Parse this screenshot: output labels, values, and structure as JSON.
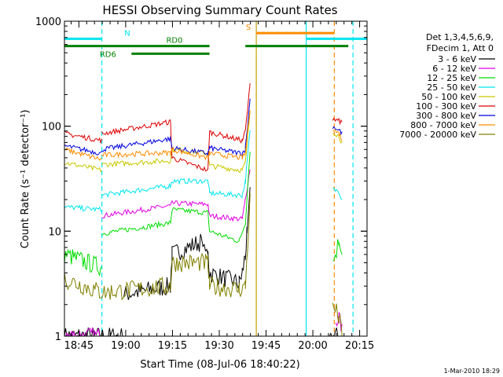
{
  "chart_data": {
    "type": "line",
    "title": "HESSI Observing Summary Count Rates",
    "xlabel": "Start Time (08-Jul-06 18:40:22)",
    "ylabel": "Count Rate (s⁻¹ detector⁻¹)",
    "yscale": "log",
    "ylim": [
      1,
      1000
    ],
    "xlim_minutes": [
      0,
      97
    ],
    "x_tick_labels": [
      "18:45",
      "19:00",
      "19:15",
      "19:30",
      "19:45",
      "20:00",
      "20:15"
    ],
    "x_tick_minutes": [
      4.63,
      19.63,
      34.63,
      49.63,
      64.63,
      79.63,
      94.63
    ],
    "y_tick_labels": [
      "1",
      "10",
      "100",
      "1000"
    ],
    "y_tick_values": [
      1,
      10,
      100,
      1000
    ],
    "legend_position": "right",
    "legend_header": [
      "Det 1,3,4,5,6,9,",
      "FDecim 1, Att 0"
    ],
    "series": [
      {
        "name": "3 - 6 keV",
        "color": "#000000",
        "segments": [
          [
            [
              0,
              1
            ],
            [
              19,
              1
            ]
          ],
          [
            [
              19,
              2.5
            ],
            [
              34,
              3
            ],
            [
              34.5,
              6
            ],
            [
              44,
              8
            ],
            [
              46,
              6
            ],
            [
              46.5,
              4
            ],
            [
              56,
              3.2
            ],
            [
              57,
              4
            ],
            [
              58,
              6
            ],
            [
              58.5,
              9
            ],
            [
              59.5,
              25
            ]
          ],
          [
            [
              85,
              1
            ],
            [
              88,
              1
            ]
          ]
        ]
      },
      {
        "name": "6 - 12 keV",
        "color": "#e000e0",
        "segments": [
          [
            [
              0,
              1
            ],
            [
              12,
              1
            ]
          ],
          [
            [
              12,
              14
            ],
            [
              34,
              17.5
            ],
            [
              34.5,
              18.5
            ],
            [
              46,
              18
            ],
            [
              46.5,
              14
            ],
            [
              57,
              13
            ],
            [
              58,
              20
            ],
            [
              59.5,
              40
            ]
          ],
          [
            [
              87,
              1.3
            ],
            [
              88,
              1.6
            ],
            [
              89,
              1.1
            ]
          ]
        ]
      },
      {
        "name": "12 - 25 keV",
        "color": "#00dd00",
        "segments": [
          [
            [
              0,
              6
            ],
            [
              12,
              4.5
            ]
          ],
          [
            [
              12,
              9.5
            ],
            [
              34,
              12
            ],
            [
              34.5,
              16
            ],
            [
              46,
              15
            ],
            [
              46.5,
              10
            ],
            [
              56,
              8
            ],
            [
              58,
              12
            ],
            [
              59.5,
              60
            ]
          ],
          [
            [
              86,
              5
            ],
            [
              88,
              8
            ],
            [
              89,
              6
            ]
          ]
        ]
      },
      {
        "name": "25 - 50 keV",
        "color": "#00e5ee",
        "segments": [
          [
            [
              0,
              17
            ],
            [
              12,
              16
            ]
          ],
          [
            [
              12,
              22
            ],
            [
              34,
              27
            ],
            [
              34.5,
              30
            ],
            [
              46,
              30
            ],
            [
              46.5,
              23
            ],
            [
              57,
              22
            ],
            [
              58,
              30
            ],
            [
              59.5,
              90
            ]
          ],
          [
            [
              86,
              25
            ],
            [
              88,
              24
            ],
            [
              89,
              20
            ]
          ]
        ]
      },
      {
        "name": "50 - 100 keV",
        "color": "#c8c800",
        "segments": [
          [
            [
              0,
              45
            ],
            [
              12,
              38
            ]
          ],
          [
            [
              12,
              43
            ],
            [
              34,
              47
            ],
            [
              34.5,
              60
            ],
            [
              46,
              55
            ],
            [
              46.5,
              42
            ],
            [
              57,
              38
            ],
            [
              58,
              45
            ],
            [
              59.5,
              140
            ]
          ],
          [
            [
              86,
              90
            ],
            [
              88,
              80
            ],
            [
              89,
              70
            ]
          ]
        ]
      },
      {
        "name": "100 - 300 keV",
        "color": "#dd0000",
        "segments": [
          [
            [
              0,
              85
            ],
            [
              12,
              73
            ]
          ],
          [
            [
              12,
              85
            ],
            [
              34,
              110
            ],
            [
              34.5,
              50
            ],
            [
              46,
              38
            ],
            [
              46.5,
              88
            ],
            [
              57,
              73
            ],
            [
              58,
              90
            ],
            [
              59.5,
              250
            ]
          ],
          [
            [
              86,
              120
            ],
            [
              88,
              115
            ],
            [
              89,
              105
            ]
          ]
        ]
      },
      {
        "name": "300 - 800 keV",
        "color": "#0000e0",
        "segments": [
          [
            [
              0,
              65
            ],
            [
              12,
              55
            ]
          ],
          [
            [
              12,
              60
            ],
            [
              34,
              76
            ],
            [
              34.5,
              62
            ],
            [
              46,
              55
            ],
            [
              46.5,
              62
            ],
            [
              57,
              55
            ],
            [
              58,
              62
            ],
            [
              59.5,
              180
            ]
          ],
          [
            [
              86,
              100
            ],
            [
              88,
              92
            ],
            [
              89,
              85
            ]
          ]
        ]
      },
      {
        "name": "800 - 7000 keV",
        "color": "#ff8c00",
        "segments": [
          [
            [
              0,
              60
            ],
            [
              12,
              48
            ]
          ],
          [
            [
              12,
              53
            ],
            [
              34,
              56
            ],
            [
              34.5,
              60
            ],
            [
              46,
              50
            ],
            [
              46.5,
              55
            ],
            [
              57,
              50
            ],
            [
              58,
              55
            ],
            [
              59.5,
              150
            ]
          ],
          [
            [
              86,
              95
            ],
            [
              88,
              85
            ],
            [
              89,
              75
            ]
          ]
        ]
      },
      {
        "name": "7000 - 20000 keV",
        "color": "#808000",
        "segments": [
          [
            [
              0,
              3.5
            ],
            [
              12,
              2.6
            ]
          ],
          [
            [
              12,
              2.6
            ],
            [
              34,
              3
            ],
            [
              34.5,
              5
            ],
            [
              46,
              5
            ],
            [
              46.5,
              3
            ],
            [
              56,
              2.8
            ],
            [
              58,
              3
            ],
            [
              59.5,
              20
            ]
          ],
          [
            [
              86,
              2
            ],
            [
              88,
              1.5
            ],
            [
              89,
              1
            ]
          ]
        ]
      }
    ],
    "vlines": [
      {
        "x": 12,
        "color": "#00e5ee",
        "style": "dashed"
      },
      {
        "x": 61.5,
        "color": "#c8a000",
        "style": "solid"
      },
      {
        "x": 77.5,
        "color": "#00e5ee",
        "style": "solid"
      },
      {
        "x": 86.5,
        "color": "#ff8c00",
        "style": "dashed"
      },
      {
        "x": 92.5,
        "color": "#00e5ee",
        "style": "dashed"
      }
    ],
    "flag_bars": [
      {
        "label": "N",
        "color": "#00e5ee",
        "y": 680,
        "ranges": [
          [
            0,
            12
          ],
          [
            77.5,
            97
          ]
        ]
      },
      {
        "label": "S",
        "color": "#ff8c00",
        "y": 770,
        "ranges": [
          [
            61.5,
            86.5
          ]
        ]
      },
      {
        "label": "RD0",
        "color": "#008000",
        "y": 580,
        "ranges": [
          [
            0,
            46.5
          ],
          [
            58,
            91
          ]
        ]
      },
      {
        "label": "RD6",
        "color": "#008000",
        "y": 490,
        "ranges": [
          [
            21.5,
            46.5
          ]
        ]
      }
    ],
    "footer_stamp": "1-Mar-2010 18:29"
  }
}
